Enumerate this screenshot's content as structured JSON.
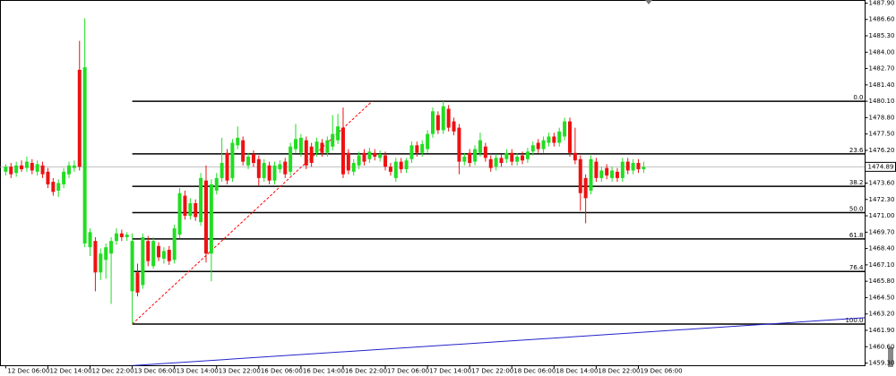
{
  "chart_data": {
    "type": "candlestick",
    "up_color": "#22dd22",
    "down_color": "#ee1111",
    "xlim": [
      -1,
      163
    ],
    "ylim": [
      1459.09,
      1488.11
    ],
    "xticks": [
      {
        "value": 0,
        "label": "12 Dec 06:00"
      },
      {
        "value": 8,
        "label": "12 Dec 14:00"
      },
      {
        "value": 16,
        "label": "12 Dec 22:00"
      },
      {
        "value": 24,
        "label": "13 Dec 06:00"
      },
      {
        "value": 32,
        "label": "13 Dec 14:00"
      },
      {
        "value": 40,
        "label": "13 Dec 22:00"
      },
      {
        "value": 48,
        "label": "16 Dec 06:00"
      },
      {
        "value": 56,
        "label": "16 Dec 14:00"
      },
      {
        "value": 64,
        "label": "16 Dec 22:00"
      },
      {
        "value": 72,
        "label": "17 Dec 06:00"
      },
      {
        "value": 80,
        "label": "17 Dec 14:00"
      },
      {
        "value": 88,
        "label": "17 Dec 22:00"
      },
      {
        "value": 96,
        "label": "18 Dec 06:00"
      },
      {
        "value": 104,
        "label": "18 Dec 14:00"
      },
      {
        "value": 112,
        "label": "18 Dec 22:00"
      },
      {
        "value": 120,
        "label": "19 Dec 06:00"
      }
    ],
    "yticks": [
      {
        "value": 1459.3,
        "label": "1459.30"
      },
      {
        "value": 1460.6,
        "label": "1460.60"
      },
      {
        "value": 1461.9,
        "label": "1461.90"
      },
      {
        "value": 1463.2,
        "label": "1463.20"
      },
      {
        "value": 1464.5,
        "label": "1464.50"
      },
      {
        "value": 1465.8,
        "label": "1465.80"
      },
      {
        "value": 1467.1,
        "label": "1467.10"
      },
      {
        "value": 1468.4,
        "label": "1468.40"
      },
      {
        "value": 1469.7,
        "label": "1469.70"
      },
      {
        "value": 1471.0,
        "label": "1471.00"
      },
      {
        "value": 1472.3,
        "label": "1472.30"
      },
      {
        "value": 1473.6,
        "label": "1473.60"
      },
      {
        "value": 1476.2,
        "label": "1476.20"
      },
      {
        "value": 1477.5,
        "label": "1477.50"
      },
      {
        "value": 1478.8,
        "label": "1478.80"
      },
      {
        "value": 1480.1,
        "label": "1480.10"
      },
      {
        "value": 1481.4,
        "label": "1481.40"
      },
      {
        "value": 1482.7,
        "label": "1482.70"
      },
      {
        "value": 1484.0,
        "label": "1484.00"
      },
      {
        "value": 1485.3,
        "label": "1485.30"
      },
      {
        "value": 1486.6,
        "label": "1486.60"
      },
      {
        "value": 1487.9,
        "label": "1487.90"
      }
    ],
    "current_price": 1474.89,
    "current_price_color": "#c0c0c0",
    "fibonacci": {
      "color": "#000000",
      "x_start": 24,
      "levels": [
        {
          "label": "0.0",
          "value": 1480.1
        },
        {
          "label": "23.6",
          "value": 1475.92
        },
        {
          "label": "38.2",
          "value": 1473.34
        },
        {
          "label": "50.0",
          "value": 1471.25
        },
        {
          "label": "61.8",
          "value": 1469.16
        },
        {
          "label": "76.4",
          "value": 1466.58
        },
        {
          "label": "100.0",
          "value": 1462.4
        }
      ]
    },
    "trendlines": [
      {
        "color": "#ff0000",
        "dashed": true,
        "x": [
          24,
          69.5
        ],
        "y": [
          1462.4,
          1480.1
        ]
      },
      {
        "color": "#2222cc",
        "dashed": false,
        "x": [
          24,
          163
        ],
        "y": [
          1459.1,
          1462.9
        ]
      }
    ],
    "ohlc": [
      [
        1474.5,
        1475.1,
        1474.2,
        1474.9
      ],
      [
        1474.9,
        1475.2,
        1474.0,
        1474.3
      ],
      [
        1474.4,
        1475.3,
        1474.1,
        1475.0
      ],
      [
        1475.0,
        1475.4,
        1474.5,
        1474.7
      ],
      [
        1474.8,
        1475.7,
        1474.5,
        1475.3
      ],
      [
        1475.2,
        1475.5,
        1474.3,
        1474.6
      ],
      [
        1474.5,
        1475.4,
        1474.2,
        1475.1
      ],
      [
        1475.0,
        1475.3,
        1474.0,
        1474.3
      ],
      [
        1474.5,
        1474.8,
        1473.2,
        1473.5
      ],
      [
        1473.7,
        1474.0,
        1472.6,
        1472.9
      ],
      [
        1473.0,
        1473.9,
        1472.5,
        1473.6
      ],
      [
        1473.5,
        1474.8,
        1473.2,
        1474.5
      ],
      [
        1474.3,
        1475.3,
        1474.0,
        1475.0
      ],
      [
        1474.8,
        1475.4,
        1474.5,
        1475.0
      ],
      [
        1482.6,
        1484.9,
        1474.6,
        1474.9
      ],
      [
        1468.8,
        1486.7,
        1468.5,
        1482.8
      ],
      [
        1468.5,
        1470.0,
        1467.8,
        1469.7
      ],
      [
        1469.0,
        1469.3,
        1465.0,
        1466.5
      ],
      [
        1466.5,
        1468.4,
        1465.9,
        1468.0
      ],
      [
        1467.5,
        1468.8,
        1466.0,
        1468.5
      ],
      [
        1468.0,
        1469.3,
        1464.0,
        1469.0
      ],
      [
        1469.0,
        1470.0,
        1468.7,
        1469.6
      ],
      [
        1469.6,
        1469.9,
        1469.0,
        1469.3
      ],
      [
        1469.3,
        1469.7,
        1469.0,
        1469.5
      ],
      [
        1465.0,
        1469.6,
        1462.4,
        1469.0
      ],
      [
        1466.5,
        1467.2,
        1464.6,
        1464.9
      ],
      [
        1465.5,
        1469.6,
        1465.2,
        1469.3
      ],
      [
        1469.0,
        1469.4,
        1467.0,
        1467.4
      ],
      [
        1467.0,
        1469.3,
        1466.8,
        1469.0
      ],
      [
        1468.6,
        1468.9,
        1467.4,
        1467.7
      ],
      [
        1467.6,
        1468.5,
        1467.2,
        1468.2
      ],
      [
        1468.3,
        1468.6,
        1467.1,
        1467.4
      ],
      [
        1467.5,
        1470.3,
        1467.2,
        1470.0
      ],
      [
        1469.5,
        1473.2,
        1469.2,
        1472.8
      ],
      [
        1472.6,
        1473.0,
        1470.7,
        1471.0
      ],
      [
        1471.0,
        1472.4,
        1470.7,
        1472.0
      ],
      [
        1472.0,
        1472.3,
        1470.6,
        1470.9
      ],
      [
        1470.5,
        1474.4,
        1470.2,
        1474.0
      ],
      [
        1473.8,
        1475.0,
        1467.3,
        1468.0
      ],
      [
        1468.0,
        1473.9,
        1465.8,
        1473.5
      ],
      [
        1473.0,
        1474.4,
        1472.7,
        1474.0
      ],
      [
        1474.0,
        1477.2,
        1473.7,
        1475.2
      ],
      [
        1476.0,
        1476.3,
        1473.5,
        1473.8
      ],
      [
        1474.0,
        1477.1,
        1473.7,
        1476.8
      ],
      [
        1476.6,
        1478.1,
        1476.3,
        1477.2
      ],
      [
        1477.0,
        1477.3,
        1475.0,
        1475.3
      ],
      [
        1475.0,
        1476.0,
        1474.7,
        1475.7
      ],
      [
        1475.9,
        1476.2,
        1474.9,
        1475.2
      ],
      [
        1475.5,
        1475.8,
        1473.4,
        1474.0
      ],
      [
        1474.0,
        1475.5,
        1473.7,
        1475.2
      ],
      [
        1475.0,
        1475.3,
        1473.5,
        1473.8
      ],
      [
        1473.8,
        1475.3,
        1473.5,
        1475.0
      ],
      [
        1474.7,
        1475.4,
        1474.4,
        1475.1
      ],
      [
        1475.3,
        1475.6,
        1474.0,
        1474.3
      ],
      [
        1474.5,
        1476.8,
        1474.2,
        1476.5
      ],
      [
        1476.3,
        1478.3,
        1476.0,
        1477.1
      ],
      [
        1476.0,
        1477.5,
        1475.7,
        1477.2
      ],
      [
        1477.0,
        1477.3,
        1474.7,
        1475.0
      ],
      [
        1476.5,
        1476.8,
        1474.9,
        1475.2
      ],
      [
        1476.0,
        1477.2,
        1475.7,
        1476.9
      ],
      [
        1476.8,
        1477.1,
        1475.7,
        1476.0
      ],
      [
        1476.0,
        1477.3,
        1475.7,
        1477.0
      ],
      [
        1476.5,
        1479.0,
        1476.2,
        1477.5
      ],
      [
        1477.0,
        1479.1,
        1476.7,
        1478.1
      ],
      [
        1478.0,
        1479.6,
        1474.0,
        1474.3
      ],
      [
        1476.0,
        1476.3,
        1474.3,
        1474.6
      ],
      [
        1474.5,
        1475.5,
        1474.2,
        1475.2
      ],
      [
        1475.0,
        1476.1,
        1474.7,
        1475.8
      ],
      [
        1476.0,
        1476.3,
        1475.0,
        1475.3
      ],
      [
        1475.5,
        1476.4,
        1475.2,
        1476.1
      ],
      [
        1476.0,
        1476.3,
        1475.4,
        1475.7
      ],
      [
        1475.6,
        1476.2,
        1475.3,
        1475.9
      ],
      [
        1475.8,
        1476.1,
        1474.6,
        1474.9
      ],
      [
        1474.9,
        1475.2,
        1474.2,
        1474.5
      ],
      [
        1474.0,
        1475.6,
        1473.7,
        1475.3
      ],
      [
        1475.3,
        1475.6,
        1474.4,
        1474.7
      ],
      [
        1474.7,
        1475.6,
        1474.4,
        1475.4
      ],
      [
        1475.5,
        1476.9,
        1475.2,
        1476.6
      ],
      [
        1476.6,
        1476.9,
        1475.7,
        1476.0
      ],
      [
        1476.0,
        1477.0,
        1475.7,
        1476.7
      ],
      [
        1476.3,
        1477.8,
        1476.0,
        1477.5
      ],
      [
        1477.5,
        1479.6,
        1477.2,
        1479.3
      ],
      [
        1479.0,
        1479.3,
        1477.5,
        1477.8
      ],
      [
        1477.8,
        1480.1,
        1477.5,
        1479.7
      ],
      [
        1479.5,
        1479.8,
        1477.7,
        1478.0
      ],
      [
        1478.5,
        1478.8,
        1477.4,
        1477.7
      ],
      [
        1478.0,
        1478.3,
        1474.3,
        1475.3
      ],
      [
        1475.3,
        1476.0,
        1475.0,
        1475.7
      ],
      [
        1476.0,
        1476.3,
        1474.9,
        1475.2
      ],
      [
        1475.3,
        1476.6,
        1475.0,
        1476.3
      ],
      [
        1476.0,
        1477.6,
        1475.7,
        1477.0
      ],
      [
        1476.5,
        1476.8,
        1475.3,
        1475.6
      ],
      [
        1475.5,
        1475.8,
        1474.5,
        1474.8
      ],
      [
        1474.9,
        1475.9,
        1474.6,
        1475.6
      ],
      [
        1475.6,
        1475.9,
        1474.9,
        1475.2
      ],
      [
        1475.5,
        1476.3,
        1475.2,
        1476.0
      ],
      [
        1476.0,
        1476.3,
        1475.0,
        1475.3
      ],
      [
        1475.3,
        1476.0,
        1475.0,
        1475.7
      ],
      [
        1475.8,
        1476.1,
        1475.1,
        1475.4
      ],
      [
        1475.5,
        1476.4,
        1475.2,
        1476.1
      ],
      [
        1476.1,
        1476.9,
        1475.8,
        1476.6
      ],
      [
        1476.8,
        1477.1,
        1476.0,
        1476.3
      ],
      [
        1476.3,
        1477.3,
        1476.0,
        1477.0
      ],
      [
        1476.8,
        1477.6,
        1476.5,
        1477.3
      ],
      [
        1477.3,
        1477.6,
        1476.5,
        1476.8
      ],
      [
        1476.8,
        1478.0,
        1476.5,
        1477.7
      ],
      [
        1477.3,
        1478.8,
        1477.0,
        1478.5
      ],
      [
        1478.5,
        1478.8,
        1475.7,
        1476.0
      ],
      [
        1476.0,
        1478.0,
        1475.1,
        1475.4
      ],
      [
        1475.5,
        1475.8,
        1471.4,
        1472.8
      ],
      [
        1474.0,
        1474.3,
        1470.4,
        1472.4
      ],
      [
        1473.0,
        1475.8,
        1472.7,
        1475.5
      ],
      [
        1475.3,
        1475.6,
        1473.7,
        1474.0
      ],
      [
        1474.0,
        1474.9,
        1473.7,
        1474.6
      ],
      [
        1474.8,
        1475.1,
        1473.9,
        1474.2
      ],
      [
        1474.0,
        1474.9,
        1473.7,
        1474.6
      ],
      [
        1474.5,
        1474.8,
        1473.7,
        1474.0
      ],
      [
        1474.0,
        1475.6,
        1473.7,
        1475.3
      ],
      [
        1475.3,
        1475.6,
        1474.3,
        1474.6
      ],
      [
        1474.6,
        1475.5,
        1474.3,
        1475.2
      ],
      [
        1475.2,
        1475.5,
        1474.4,
        1474.7
      ],
      [
        1474.7,
        1475.3,
        1474.4,
        1474.89
      ]
    ]
  }
}
